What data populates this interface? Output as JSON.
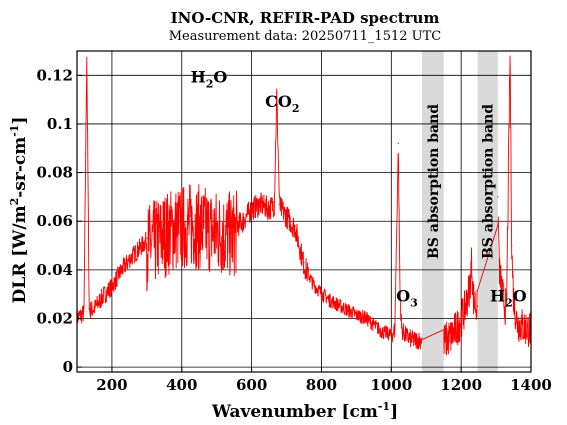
{
  "chart_data": {
    "type": "line",
    "title": "INO-CNR, REFIR-PAD spectrum",
    "subtitle": "Measurement data: 20250711_1512 UTC",
    "xlabel": "Wavenumber [cm",
    "xlabel_sup": "-1",
    "xlabel_end": "]",
    "ylabel": "DLR [W/m",
    "ylabel_sup": "2",
    "ylabel_mid": "-sr-cm",
    "ylabel_sup2": "-1",
    "ylabel_end": "]",
    "xlim": [
      100,
      1400
    ],
    "ylim": [
      -0.002,
      0.13
    ],
    "xticks": [
      200,
      400,
      600,
      800,
      1000,
      1200,
      1400
    ],
    "yticks": [
      0,
      0.02,
      0.04,
      0.06,
      0.08,
      0.1,
      0.12
    ],
    "ytick_labels": [
      "0",
      "0.02",
      "0.04",
      "0.06",
      "0.08",
      "0.1",
      "0.12"
    ],
    "grid": true,
    "line_color": "#ff0000",
    "band_color": "#d9d9d9",
    "bands": [
      {
        "x0": 1088,
        "x1": 1150,
        "label": "BS absorption band"
      },
      {
        "x0": 1247,
        "x1": 1305,
        "label": "BS absorption band"
      }
    ],
    "annotations": [
      {
        "text": "H",
        "sub": "2",
        "end": "O",
        "x": 478,
        "y": 0.117
      },
      {
        "text": "CO",
        "sub": "2",
        "end": "",
        "x": 688,
        "y": 0.107
      },
      {
        "text": "O",
        "sub": "3",
        "end": "",
        "x": 1045,
        "y": 0.027
      },
      {
        "text": "H",
        "sub": "2",
        "end": "O",
        "x": 1335,
        "y": 0.027
      }
    ],
    "series": [
      {
        "x": [
          100,
          120,
          128,
          135,
          150,
          175,
          200,
          225,
          250,
          275,
          300,
          325,
          350,
          375,
          400,
          425,
          450,
          475,
          500,
          525,
          550,
          575,
          600,
          625,
          650,
          665,
          672,
          680,
          700,
          725,
          750,
          775,
          800,
          825,
          850,
          875,
          900,
          925,
          950,
          975,
          1000,
          1010,
          1020,
          1025,
          1030,
          1040,
          1060,
          1080,
          1088,
          1150,
          1170,
          1190,
          1210,
          1225,
          1230,
          1235,
          1247,
          1305,
          1310,
          1320,
          1330,
          1340,
          1345,
          1350,
          1360,
          1380,
          1400
        ],
        "y": [
          0.021,
          0.023,
          0.13,
          0.024,
          0.025,
          0.03,
          0.034,
          0.04,
          0.045,
          0.049,
          0.053,
          0.055,
          0.058,
          0.06,
          0.061,
          0.062,
          0.061,
          0.06,
          0.059,
          0.058,
          0.058,
          0.061,
          0.066,
          0.068,
          0.066,
          0.068,
          0.113,
          0.067,
          0.063,
          0.058,
          0.043,
          0.035,
          0.031,
          0.028,
          0.026,
          0.024,
          0.022,
          0.021,
          0.018,
          0.015,
          0.014,
          0.016,
          0.092,
          0.03,
          0.016,
          0.014,
          0.012,
          0.012,
          0.012,
          0.012,
          0.014,
          0.018,
          0.025,
          0.035,
          0.045,
          0.03,
          0.025,
          0.07,
          0.04,
          0.03,
          0.025,
          0.13,
          0.05,
          0.03,
          0.02,
          0.018,
          0.017
        ]
      }
    ]
  }
}
